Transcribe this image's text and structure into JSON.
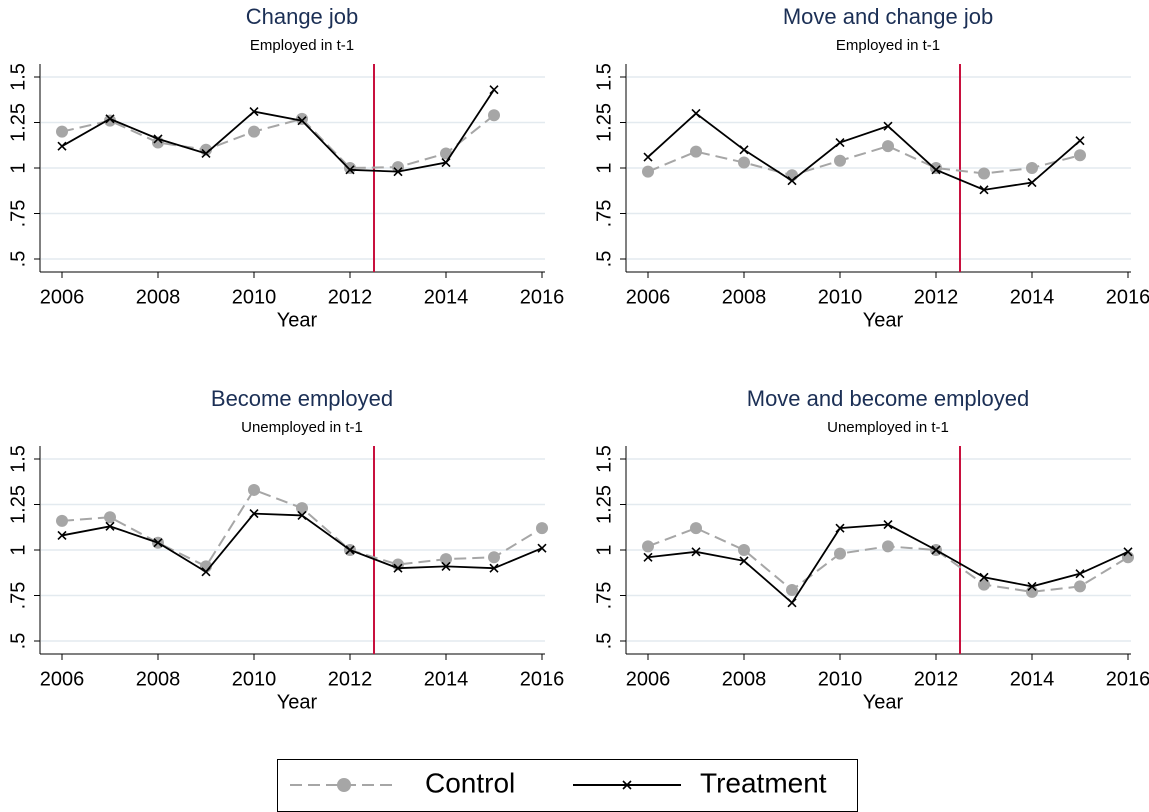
{
  "chart_data": [
    {
      "type": "line",
      "title": "Change job",
      "subtitle": "Employed in t-1",
      "xlabel": "Year",
      "x": [
        2006,
        2007,
        2008,
        2009,
        2010,
        2011,
        2012,
        2013,
        2014,
        2015
      ],
      "series": [
        {
          "color": "#a6a6a6",
          "values": [
            1.2,
            1.26,
            1.14,
            1.1,
            1.2,
            1.27,
            1.0,
            1.005,
            1.08,
            1.29
          ]
        },
        {
          "color": "#000000",
          "values": [
            1.12,
            1.27,
            1.16,
            1.08,
            1.31,
            1.26,
            0.99,
            0.98,
            1.03,
            1.43
          ]
        }
      ],
      "xlim": [
        2006,
        2016
      ],
      "xticks": [
        2006,
        2008,
        2010,
        2012,
        2014,
        2016
      ],
      "ylim": [
        0.5,
        1.5
      ],
      "yticks": [
        {
          "value": 0.5,
          "label": ".5"
        },
        {
          "value": 0.75,
          "label": ".75"
        },
        1,
        1.25,
        1.5
      ],
      "grid": true,
      "vline": {
        "value": 2012.5,
        "color": "#c8103e"
      }
    },
    {
      "type": "line",
      "title": "Move and change job",
      "subtitle": "Employed in t-1",
      "xlabel": "Year",
      "x": [
        2006,
        2007,
        2008,
        2009,
        2010,
        2011,
        2012,
        2013,
        2014,
        2015
      ],
      "series": [
        {
          "color": "#a6a6a6",
          "values": [
            0.98,
            1.09,
            1.03,
            0.96,
            1.04,
            1.12,
            1.0,
            0.97,
            1.0,
            1.07
          ]
        },
        {
          "color": "#000000",
          "values": [
            1.06,
            1.3,
            1.1,
            0.93,
            1.14,
            1.23,
            0.99,
            0.88,
            0.92,
            1.15
          ]
        }
      ],
      "xlim": [
        2006,
        2016
      ],
      "xticks": [
        2006,
        2008,
        2010,
        2012,
        2014,
        2016
      ],
      "ylim": [
        0.5,
        1.5
      ],
      "yticks": [
        {
          "value": 0.5,
          "label": ".5"
        },
        {
          "value": 0.75,
          "label": ".75"
        },
        1,
        1.25,
        1.5
      ],
      "grid": true,
      "vline": {
        "value": 2012.5,
        "color": "#c8103e"
      }
    },
    {
      "type": "line",
      "title": "Become employed",
      "subtitle": "Unemployed in t-1",
      "xlabel": "Year",
      "x": [
        2006,
        2007,
        2008,
        2009,
        2010,
        2011,
        2012,
        2013,
        2014,
        2015,
        2016
      ],
      "series": [
        {
          "color": "#a6a6a6",
          "values": [
            1.16,
            1.18,
            1.04,
            0.91,
            1.33,
            1.23,
            1.0,
            0.92,
            0.95,
            0.96,
            1.12
          ]
        },
        {
          "color": "#000000",
          "values": [
            1.08,
            1.13,
            1.04,
            0.88,
            1.2,
            1.19,
            1.0,
            0.9,
            0.91,
            0.9,
            1.01
          ]
        }
      ],
      "xlim": [
        2006,
        2016
      ],
      "xticks": [
        2006,
        2008,
        2010,
        2012,
        2014,
        2016
      ],
      "ylim": [
        0.5,
        1.5
      ],
      "yticks": [
        {
          "value": 0.5,
          "label": ".5"
        },
        {
          "value": 0.75,
          "label": ".75"
        },
        1,
        1.25,
        1.5
      ],
      "grid": true,
      "vline": {
        "value": 2012.5,
        "color": "#c8103e"
      }
    },
    {
      "type": "line",
      "title": "Move and become employed",
      "subtitle": "Unemployed in t-1",
      "xlabel": "Year",
      "x": [
        2006,
        2007,
        2008,
        2009,
        2010,
        2011,
        2012,
        2013,
        2014,
        2015,
        2016
      ],
      "series": [
        {
          "color": "#a6a6a6",
          "values": [
            1.02,
            1.12,
            1.0,
            0.78,
            0.98,
            1.02,
            1.0,
            0.81,
            0.77,
            0.8,
            0.96
          ]
        },
        {
          "color": "#000000",
          "values": [
            0.96,
            0.99,
            0.94,
            0.71,
            1.12,
            1.14,
            1.0,
            0.85,
            0.8,
            0.87,
            0.99
          ]
        }
      ],
      "xlim": [
        2006,
        2016
      ],
      "xticks": [
        2006,
        2008,
        2010,
        2012,
        2014,
        2016
      ],
      "ylim": [
        0.5,
        1.5
      ],
      "yticks": [
        {
          "value": 0.5,
          "label": ".5"
        },
        {
          "value": 0.75,
          "label": ".75"
        },
        1,
        1.25,
        1.5
      ],
      "grid": true,
      "vline": {
        "value": 2012.5,
        "color": "#c8103e"
      }
    }
  ],
  "legend": {
    "position": "bottom",
    "entries": [
      "Control",
      "Treatment"
    ]
  }
}
